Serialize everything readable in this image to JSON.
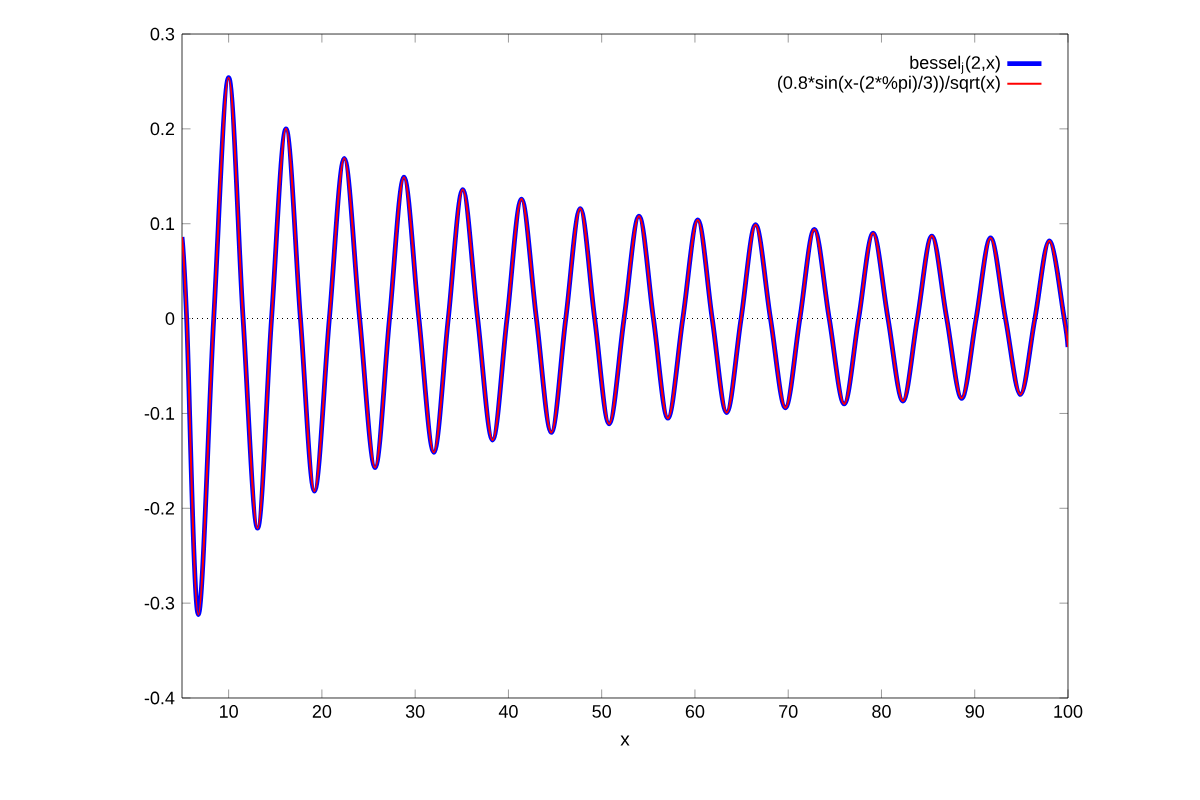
{
  "chart_data": {
    "type": "line",
    "xlabel": "x",
    "xlim": [
      5,
      100
    ],
    "ylim": [
      -0.4,
      0.3
    ],
    "xticks": [
      10,
      20,
      30,
      40,
      50,
      60,
      70,
      80,
      90,
      100
    ],
    "yticks": [
      -0.4,
      -0.3,
      -0.2,
      -0.1,
      0,
      0.1,
      0.2,
      0.3
    ],
    "legend": "top right",
    "grid": false,
    "marker": "none",
    "line_style": "solid",
    "ref_lines": [
      {
        "axis": "y",
        "value": 0,
        "color": "#000000",
        "line_style": "dotted"
      }
    ],
    "x": [
      5,
      5.5,
      6.75,
      8.4,
      10,
      11.55,
      13.1,
      14.6,
      16.15,
      17.7,
      19.2,
      20.8,
      22.4,
      24.05,
      25.7,
      27.25,
      28.8,
      30.4,
      32.0,
      33.55,
      35.1,
      36.7,
      38.3,
      39.85,
      41.4,
      43.0,
      44.6,
      46.15,
      47.7,
      49.25,
      50.8,
      52.4,
      54.0,
      55.55,
      57.1,
      58.7,
      60.3,
      61.85,
      63.4,
      64.95,
      66.5,
      68.1,
      69.7,
      71.25,
      72.8,
      74.4,
      76.0,
      77.55,
      79.1,
      80.7,
      82.3,
      83.85,
      85.4,
      87.0,
      88.6,
      90.15,
      91.7,
      93.3,
      94.9,
      96.45,
      98.0,
      99.6,
      100
    ],
    "series": [
      {
        "name": "bessel$_{j}$(2,x)",
        "color": "#0000ff",
        "values": [
          0.086,
          0,
          -0.312,
          0,
          0.254,
          0,
          -0.221,
          0,
          0.2,
          0,
          -0.182,
          0,
          0.169,
          0,
          -0.157,
          0,
          0.149,
          0,
          -0.141,
          0,
          0.136,
          0,
          -0.128,
          0,
          0.126,
          0,
          -0.12,
          0,
          0.116,
          0,
          -0.111,
          0,
          0.108,
          0,
          -0.105,
          0,
          0.104,
          0,
          -0.099,
          0,
          0.099,
          0,
          -0.094,
          0,
          0.094,
          0,
          -0.09,
          0,
          0.09,
          0,
          -0.087,
          0,
          0.087,
          0,
          -0.084,
          0,
          0.085,
          0,
          -0.08,
          0,
          0.082,
          0,
          -0.03
        ]
      },
      {
        "name": "(0.8*sin(x-(2*%pi)/3))/sqrt(x)",
        "color": "#ff0000",
        "values": [
          0.086,
          0,
          -0.312,
          0,
          0.254,
          0,
          -0.221,
          0,
          0.2,
          0,
          -0.182,
          0,
          0.169,
          0,
          -0.157,
          0,
          0.149,
          0,
          -0.141,
          0,
          0.136,
          0,
          -0.128,
          0,
          0.126,
          0,
          -0.12,
          0,
          0.116,
          0,
          -0.111,
          0,
          0.108,
          0,
          -0.105,
          0,
          0.104,
          0,
          -0.099,
          0,
          0.099,
          0,
          -0.094,
          0,
          0.094,
          0,
          -0.09,
          0,
          0.09,
          0,
          -0.087,
          0,
          0.087,
          0,
          -0.084,
          0,
          0.085,
          0,
          -0.08,
          0,
          0.082,
          0,
          -0.03
        ]
      }
    ]
  }
}
